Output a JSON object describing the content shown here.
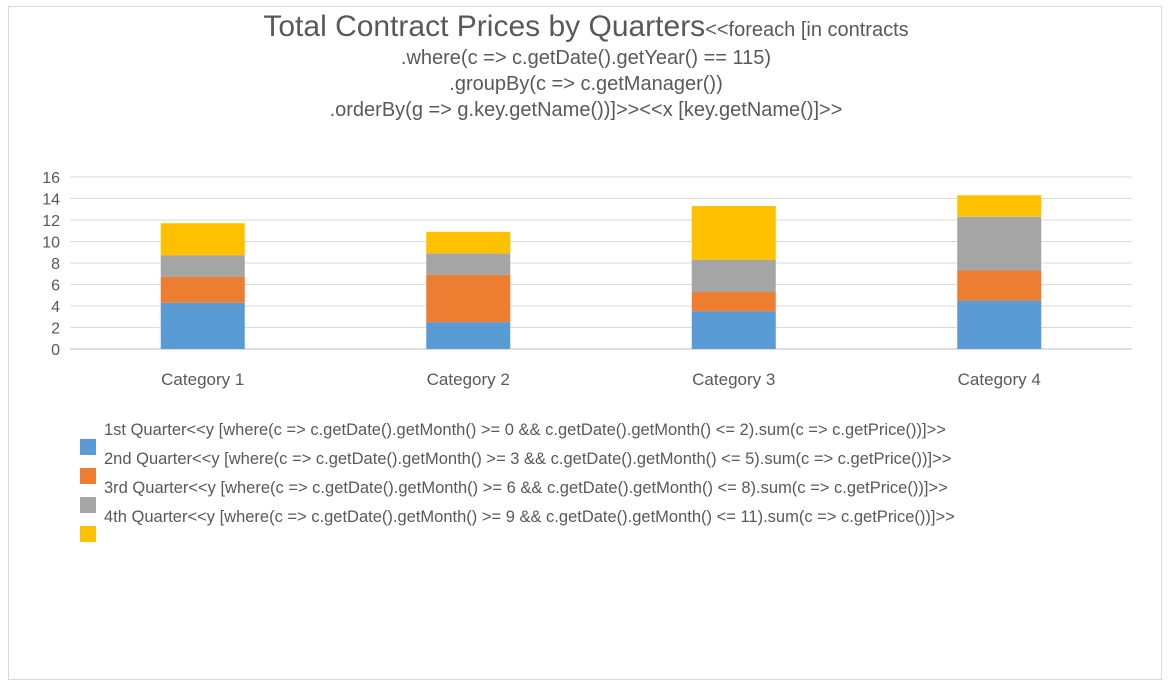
{
  "chart_data": {
    "type": "bar",
    "stacked": true,
    "title": {
      "main": "Total Contract Prices by Quarters",
      "code_line1": "<<foreach [in contracts",
      "code_line2": ".where(c => c.getDate().getYear() == 115)",
      "code_line3": ".groupBy(c => c.getManager())",
      "code_line4": ".orderBy(g => g.key.getName())]>><<x [key.getName()]>>"
    },
    "categories": [
      "Category 1",
      "Category 2",
      "Category 3",
      "Category 4"
    ],
    "ylim": [
      0,
      16
    ],
    "yticks": [
      "0",
      "2",
      "4",
      "6",
      "8",
      "10",
      "12",
      "14",
      "16"
    ],
    "grid": true,
    "legend_position": "bottom",
    "series": [
      {
        "name": "1st Quarter<<y [where(c => c.getDate().getMonth() >= 0 && c.getDate().getMonth() <= 2).sum(c => c.getPrice())]>>",
        "color": "#5b9bd5",
        "values": [
          4.3,
          2.5,
          3.5,
          4.5
        ]
      },
      {
        "name": "2nd Quarter<<y [where(c => c.getDate().getMonth() >= 3 && c.getDate().getMonth() <= 5).sum(c => c.getPrice())]>>",
        "color": "#ed7d31",
        "values": [
          2.4,
          4.4,
          1.8,
          2.8
        ]
      },
      {
        "name": "3rd Quarter<<y [where(c => c.getDate().getMonth() >= 6 && c.getDate().getMonth() <= 8).sum(c => c.getPrice())]>>",
        "color": "#a5a5a5",
        "values": [
          2.0,
          2.0,
          3.0,
          5.0
        ]
      },
      {
        "name": "4th Quarter<<y [where(c => c.getDate().getMonth() >= 9 && c.getDate().getMonth() <= 11).sum(c => c.getPrice())]>>",
        "color": "#ffc000",
        "values": [
          3.0,
          2.0,
          5.0,
          2.0
        ]
      }
    ]
  }
}
